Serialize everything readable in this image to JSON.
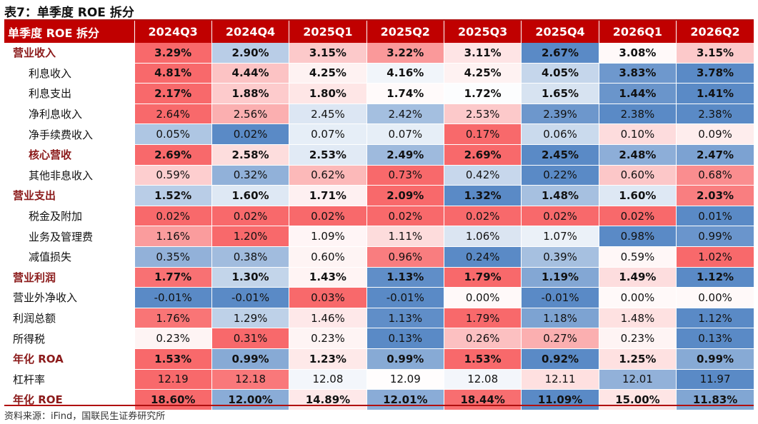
{
  "title": "表7：单季度 ROE 拆分",
  "source": "资料来源：iFind，国联民生证券研究所",
  "colors": {
    "header_bg": "#c00000",
    "header_text": "#ffffff",
    "section_label": "#8b1a1a",
    "high": "#f8696b",
    "low": "#5a8ac6",
    "mid": "#ffffff"
  },
  "header": {
    "label": "单季度 ROE 拆分",
    "periods": [
      "2024Q3",
      "2024Q4",
      "2025Q1",
      "2025Q2",
      "2025Q3",
      "2025Q4",
      "2026Q1",
      "2026Q2"
    ]
  },
  "rows": [
    {
      "label": "营业收入",
      "level": 0,
      "bold": true,
      "values": [
        "3.29%",
        "2.90%",
        "3.15%",
        "3.22%",
        "3.11%",
        "2.67%",
        "3.08%",
        "3.15%"
      ]
    },
    {
      "label": "利息收入",
      "level": 1,
      "bold": true,
      "values": [
        "4.81%",
        "4.44%",
        "4.25%",
        "4.16%",
        "4.25%",
        "4.05%",
        "3.83%",
        "3.78%"
      ]
    },
    {
      "label": "利息支出",
      "level": 1,
      "bold": true,
      "values": [
        "2.17%",
        "1.88%",
        "1.80%",
        "1.74%",
        "1.72%",
        "1.65%",
        "1.44%",
        "1.41%"
      ]
    },
    {
      "label": "净利息收入",
      "level": 1,
      "bold": false,
      "values": [
        "2.64%",
        "2.56%",
        "2.45%",
        "2.42%",
        "2.53%",
        "2.39%",
        "2.38%",
        "2.38%"
      ]
    },
    {
      "label": "净手续费收入",
      "level": 1,
      "bold": false,
      "values": [
        "0.05%",
        "0.02%",
        "0.07%",
        "0.07%",
        "0.17%",
        "0.06%",
        "0.10%",
        "0.09%"
      ]
    },
    {
      "label": "核心营收",
      "level": 0,
      "bold": true,
      "sub_indent": true,
      "values": [
        "2.69%",
        "2.58%",
        "2.53%",
        "2.49%",
        "2.69%",
        "2.45%",
        "2.48%",
        "2.47%"
      ]
    },
    {
      "label": "其他非息收入",
      "level": 1,
      "bold": false,
      "values": [
        "0.59%",
        "0.32%",
        "0.62%",
        "0.73%",
        "0.42%",
        "0.22%",
        "0.60%",
        "0.68%"
      ]
    },
    {
      "label": "营业支出",
      "level": 0,
      "bold": true,
      "values": [
        "1.52%",
        "1.60%",
        "1.71%",
        "2.09%",
        "1.32%",
        "1.48%",
        "1.60%",
        "2.03%"
      ]
    },
    {
      "label": "税金及附加",
      "level": 1,
      "bold": false,
      "values": [
        "0.02%",
        "0.02%",
        "0.02%",
        "0.02%",
        "0.02%",
        "0.02%",
        "0.02%",
        "0.01%"
      ]
    },
    {
      "label": "业务及管理费",
      "level": 1,
      "bold": false,
      "values": [
        "1.16%",
        "1.20%",
        "1.09%",
        "1.11%",
        "1.06%",
        "1.07%",
        "0.98%",
        "0.99%"
      ]
    },
    {
      "label": "减值损失",
      "level": 1,
      "bold": false,
      "values": [
        "0.35%",
        "0.38%",
        "0.60%",
        "0.96%",
        "0.24%",
        "0.39%",
        "0.59%",
        "1.02%"
      ]
    },
    {
      "label": "营业利润",
      "level": 0,
      "bold": true,
      "values": [
        "1.77%",
        "1.30%",
        "1.43%",
        "1.13%",
        "1.79%",
        "1.19%",
        "1.49%",
        "1.12%"
      ]
    },
    {
      "label": "营业外净收入",
      "level": 2,
      "bold": false,
      "values": [
        "-0.01%",
        "-0.01%",
        "0.03%",
        "-0.01%",
        "0.00%",
        "-0.01%",
        "0.00%",
        "0.00%"
      ]
    },
    {
      "label": "利润总额",
      "level": 2,
      "bold": false,
      "values": [
        "1.76%",
        "1.29%",
        "1.46%",
        "1.13%",
        "1.79%",
        "1.18%",
        "1.48%",
        "1.12%"
      ]
    },
    {
      "label": "所得税",
      "level": 2,
      "bold": false,
      "values": [
        "0.23%",
        "0.31%",
        "0.23%",
        "0.13%",
        "0.26%",
        "0.27%",
        "0.23%",
        "0.13%"
      ]
    },
    {
      "label": "年化 ROA",
      "level": 0,
      "bold": true,
      "values": [
        "1.53%",
        "0.99%",
        "1.23%",
        "0.99%",
        "1.53%",
        "0.92%",
        "1.25%",
        "0.99%"
      ]
    },
    {
      "label": "杠杆率",
      "level": 2,
      "bold": false,
      "values": [
        "12.19",
        "12.18",
        "12.08",
        "12.09",
        "12.08",
        "12.11",
        "12.01",
        "11.97"
      ]
    },
    {
      "label": "年化 ROE",
      "level": 0,
      "bold": true,
      "values": [
        "18.60%",
        "12.00%",
        "14.89%",
        "12.01%",
        "18.44%",
        "11.09%",
        "15.00%",
        "11.83%"
      ]
    }
  ]
}
